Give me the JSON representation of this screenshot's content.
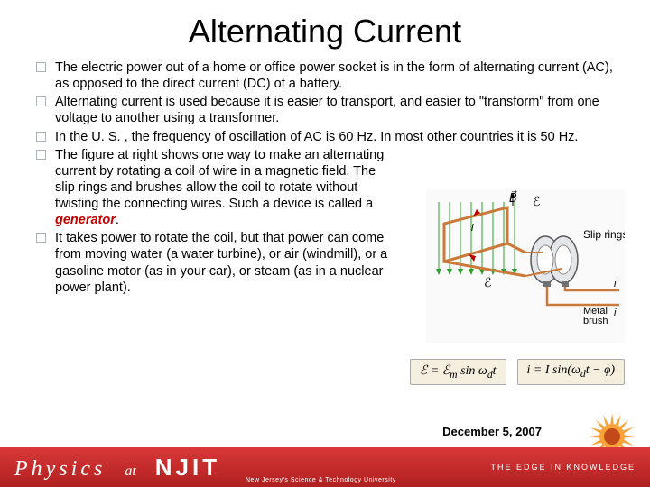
{
  "title": "Alternating Current",
  "bullets": [
    {
      "text": "The electric power out of a home or office power socket is in the form of alternating current (AC), as opposed to the direct current (DC) of a battery.",
      "narrow": false
    },
    {
      "text": "Alternating current is used because it is easier to transport, and easier to \"transform\" from one voltage to another using a transformer.",
      "narrow": false
    },
    {
      "text": "In the U. S. , the frequency of oscillation of AC is 60 Hz.  In most other countries it is 50 Hz.",
      "narrow": false
    },
    {
      "text": "The figure at right shows one way to make an alternating current by rotating a coil of wire in a magnetic field.  The slip rings and brushes allow the coil to rotate without twisting the connecting wires. Such a device is called a ",
      "narrow": true,
      "suffix_italic": "generator",
      "suffix_after": "."
    },
    {
      "text": "It takes power to rotate the coil, but that power can come from moving water (a water turbine), or air (windmill), or a gasoline motor (as in your car), or steam (as in a nuclear power plant).",
      "narrow": true
    }
  ],
  "figure": {
    "labels": {
      "B": "B",
      "slip_rings": "Slip rings",
      "metal_brush": "Metal\nbrush",
      "i": "i"
    },
    "colors": {
      "field_arrow": "#2aa02a",
      "coil": "#c97a3a",
      "ring_fill": "#cfd4d8",
      "ring_stroke": "#5a5a5a",
      "current": "#c00000"
    }
  },
  "equations": {
    "eq1": "ℰ = ℰ_m sin ω_d t",
    "eq2": "i = I sin(ω_d t − ϕ)"
  },
  "date": "December 5, 2007",
  "footer": {
    "physics": "Physics",
    "at": "at",
    "njit": "NJIT",
    "subtitle": "New Jersey's Science & Technology University",
    "tagline": "THE EDGE IN KNOWLEDGE"
  },
  "colors": {
    "title": "#000000",
    "bullet_border": "#a8b4b8",
    "footer_bg_top": "#d93838",
    "footer_bg_bottom": "#b02020",
    "sun_outer": "#f9a23a",
    "sun_inner": "#c24a1a"
  }
}
